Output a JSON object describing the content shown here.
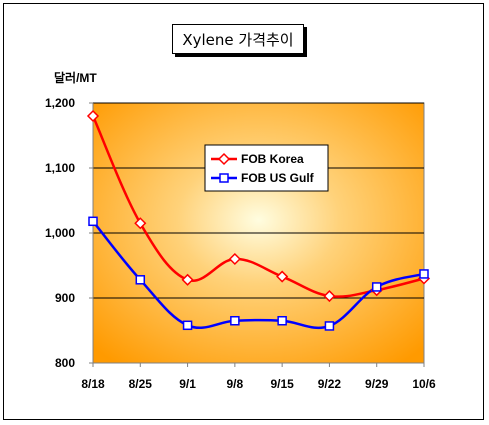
{
  "chart_data": {
    "type": "line",
    "title": "Xylene 가격추이",
    "ylabel": "달러/MT",
    "xlabel": "",
    "categories": [
      "8/18",
      "8/25",
      "9/1",
      "9/8",
      "9/15",
      "9/22",
      "9/29",
      "10/6"
    ],
    "ylim": [
      800,
      1200
    ],
    "yticks": [
      800,
      900,
      1000,
      1100,
      1200
    ],
    "ytick_labels": [
      "800",
      "900",
      "1,000",
      "1,100",
      "1,200"
    ],
    "grid": "horizontal",
    "legend_position": "upper-center",
    "series": [
      {
        "name": "FOB Korea",
        "values": [
          1180,
          1015,
          928,
          960,
          933,
          903,
          912,
          930
        ],
        "color": "#ff0000",
        "marker": "diamond"
      },
      {
        "name": "FOB US Gulf",
        "values": [
          1018,
          928,
          858,
          865,
          865,
          857,
          917,
          937
        ],
        "color": "#0000ff",
        "marker": "square"
      }
    ],
    "background": {
      "inner": "#fffde0",
      "outer": "#ff9a00"
    }
  }
}
